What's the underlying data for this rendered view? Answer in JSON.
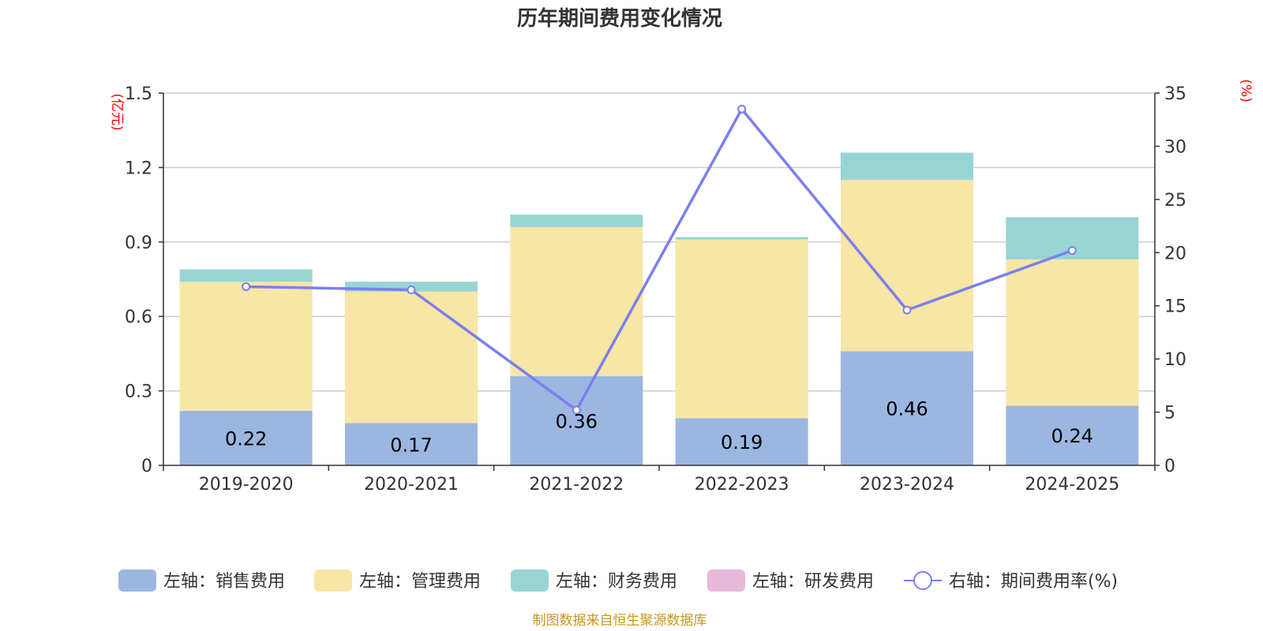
{
  "chart_data": {
    "type": "bar",
    "stacked": true,
    "title": "历年期间费用变化情况",
    "categories": [
      "2019-2020",
      "2020-2021",
      "2021-2022",
      "2022-2023",
      "2023-2024",
      "2024-2025"
    ],
    "left_axis": {
      "unit": "(亿元)",
      "ylim": [
        0,
        1.5
      ],
      "ticks": [
        "0",
        "0.3",
        "0.6",
        "0.9",
        "1.2",
        "1.5"
      ]
    },
    "right_axis": {
      "unit": "(%)",
      "ylim": [
        0,
        35
      ],
      "ticks": [
        "0",
        "5",
        "10",
        "15",
        "20",
        "25",
        "30",
        "35"
      ]
    },
    "series": [
      {
        "name": "左轴：销售费用",
        "type": "bar",
        "axis": "left",
        "color": "#9bb7e1",
        "values": [
          0.22,
          0.17,
          0.36,
          0.19,
          0.46,
          0.24
        ],
        "labels": [
          "0.22",
          "0.17",
          "0.36",
          "0.19",
          "0.46",
          "0.24"
        ]
      },
      {
        "name": "左轴：管理费用",
        "type": "bar",
        "axis": "left",
        "color": "#f7e6a6",
        "values": [
          0.52,
          0.53,
          0.6,
          0.72,
          0.69,
          0.59
        ]
      },
      {
        "name": "左轴：财务费用",
        "type": "bar",
        "axis": "left",
        "color": "#98d4d4",
        "values": [
          0.05,
          0.04,
          0.05,
          0.01,
          0.11,
          0.17
        ]
      },
      {
        "name": "左轴：研发费用",
        "type": "bar",
        "axis": "left",
        "color": "#e8b8d8",
        "values": [
          0,
          0,
          0,
          0,
          0,
          0
        ]
      },
      {
        "name": "右轴：期间费用率(%)",
        "type": "line",
        "axis": "right",
        "color": "#7b7ff0",
        "values": [
          16.8,
          16.5,
          5.2,
          33.5,
          14.6,
          20.2
        ]
      }
    ],
    "grid": true,
    "legend_position": "bottom",
    "source": "制图数据来自恒生聚源数据库"
  }
}
